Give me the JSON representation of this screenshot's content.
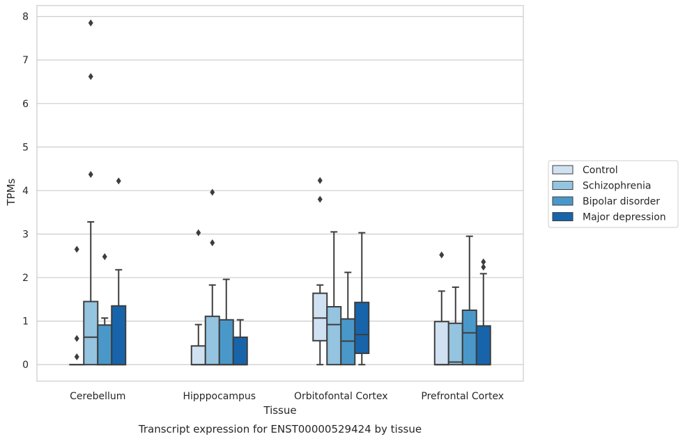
{
  "caption": "Transcript expression for ENST00000529424 by tissue",
  "chart_data": {
    "type": "box",
    "xlabel": "Tissue",
    "ylabel": "TPMs",
    "ylim": [
      -0.38,
      8.25
    ],
    "yticks": [
      0,
      1,
      2,
      3,
      4,
      5,
      6,
      7,
      8
    ],
    "grid": true,
    "legend_position": "right",
    "categories": [
      "Cerebellum",
      "Hipppocampus",
      "Orbitofontal Cortex",
      "Prefrontal Cortex"
    ],
    "series": [
      {
        "name": "Control",
        "color": "#d0e1f2",
        "boxes": [
          {
            "q1": 0.0,
            "median": 0.0,
            "q3": 0.0,
            "whisker_low": 0.0,
            "whisker_high": 0.0,
            "outliers": [
              2.65,
              0.6,
              0.18
            ]
          },
          {
            "q1": 0.0,
            "median": 0.0,
            "q3": 0.43,
            "whisker_low": 0.0,
            "whisker_high": 0.92,
            "outliers": [
              3.03
            ]
          },
          {
            "q1": 0.55,
            "median": 1.07,
            "q3": 1.64,
            "whisker_low": 0.0,
            "whisker_high": 1.83,
            "outliers": [
              4.23,
              3.8
            ]
          },
          {
            "q1": 0.0,
            "median": 0.0,
            "q3": 0.99,
            "whisker_low": 0.0,
            "whisker_high": 1.69,
            "outliers": [
              2.52
            ]
          }
        ]
      },
      {
        "name": "Schizophrenia",
        "color": "#94c4df",
        "boxes": [
          {
            "q1": 0.0,
            "median": 0.63,
            "q3": 1.45,
            "whisker_low": 0.0,
            "whisker_high": 3.28,
            "outliers": [
              7.85,
              6.62,
              4.37
            ]
          },
          {
            "q1": 0.0,
            "median": 0.0,
            "q3": 1.11,
            "whisker_low": 0.0,
            "whisker_high": 1.83,
            "outliers": [
              3.96,
              2.8
            ]
          },
          {
            "q1": 0.0,
            "median": 0.92,
            "q3": 1.33,
            "whisker_low": 0.0,
            "whisker_high": 3.05,
            "outliers": []
          },
          {
            "q1": 0.0,
            "median": 0.06,
            "q3": 0.95,
            "whisker_low": 0.0,
            "whisker_high": 1.78,
            "outliers": []
          }
        ]
      },
      {
        "name": "Bipolar disorder",
        "color": "#4a98c9",
        "boxes": [
          {
            "q1": 0.0,
            "median": 0.0,
            "q3": 0.91,
            "whisker_low": 0.0,
            "whisker_high": 1.07,
            "outliers": [
              2.48
            ]
          },
          {
            "q1": 0.0,
            "median": 0.0,
            "q3": 1.03,
            "whisker_low": 0.0,
            "whisker_high": 1.96,
            "outliers": []
          },
          {
            "q1": 0.0,
            "median": 0.54,
            "q3": 1.05,
            "whisker_low": 0.0,
            "whisker_high": 2.12,
            "outliers": []
          },
          {
            "q1": 0.0,
            "median": 0.73,
            "q3": 1.25,
            "whisker_low": 0.0,
            "whisker_high": 2.95,
            "outliers": []
          }
        ]
      },
      {
        "name": "Major depression",
        "color": "#1764ab",
        "boxes": [
          {
            "q1": 0.0,
            "median": 0.0,
            "q3": 1.35,
            "whisker_low": 0.0,
            "whisker_high": 2.18,
            "outliers": [
              4.22
            ]
          },
          {
            "q1": 0.0,
            "median": 0.0,
            "q3": 0.63,
            "whisker_low": 0.0,
            "whisker_high": 1.03,
            "outliers": []
          },
          {
            "q1": 0.26,
            "median": 0.69,
            "q3": 1.43,
            "whisker_low": 0.0,
            "whisker_high": 3.03,
            "outliers": []
          },
          {
            "q1": 0.0,
            "median": 0.0,
            "q3": 0.89,
            "whisker_low": 0.0,
            "whisker_high": 2.09,
            "outliers": [
              2.36,
              2.24
            ]
          }
        ]
      }
    ]
  }
}
